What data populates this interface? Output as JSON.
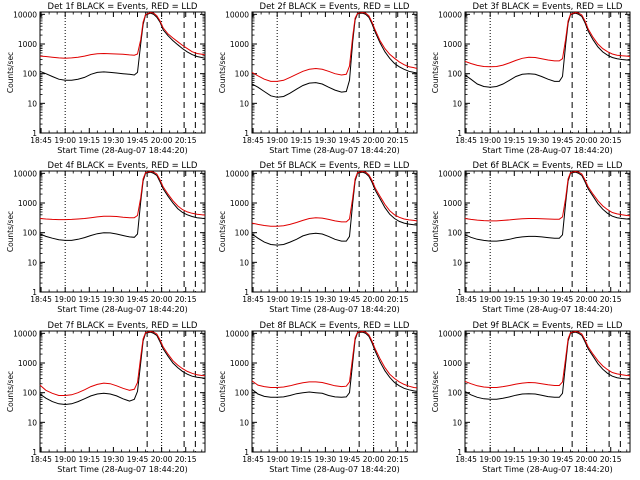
{
  "chart_data": {
    "type": "line",
    "layout": "3x3 grid",
    "ylabel": "Counts/sec",
    "xlabel": "Start Time (28-Aug-07 18:44:20)",
    "x_ticks": [
      "18:45",
      "19:00",
      "19:15",
      "19:30",
      "19:45",
      "20:00",
      "20:15"
    ],
    "x_tick_values": [
      45,
      60,
      75,
      90,
      105,
      120,
      135
    ],
    "xlim": [
      44.33,
      147
    ],
    "y_scale": "log",
    "ylim": [
      1,
      12000
    ],
    "y_ticks": [
      "1",
      "10",
      "100",
      "1000",
      "10000"
    ],
    "y_tick_values": [
      1,
      10,
      100,
      1000,
      10000
    ],
    "dotted_vlines": [
      60,
      120
    ],
    "dashed_vlines": [
      111,
      134,
      141
    ],
    "curve_x": [
      44.3,
      48,
      52,
      56,
      60,
      64,
      68,
      72,
      76,
      80,
      84,
      88,
      92,
      96,
      100,
      103,
      105,
      107,
      108.5,
      110,
      113,
      115,
      117,
      119,
      121,
      124,
      127,
      130,
      133,
      136,
      139,
      142,
      145,
      147
    ],
    "panels": [
      {
        "title": "Det 1f BLACK = Events, RED = LLD",
        "red": [
          390,
          380,
          360,
          340,
          330,
          340,
          360,
          390,
          440,
          470,
          480,
          470,
          460,
          450,
          430,
          420,
          460,
          1400,
          5500,
          9800,
          11500,
          11000,
          9000,
          6000,
          3500,
          2200,
          1600,
          1200,
          900,
          700,
          550,
          480,
          450,
          430
        ],
        "black": [
          120,
          100,
          80,
          65,
          60,
          60,
          65,
          75,
          95,
          110,
          115,
          110,
          105,
          100,
          95,
          90,
          110,
          1000,
          4500,
          9500,
          11000,
          10000,
          8000,
          5500,
          3000,
          1900,
          1300,
          950,
          700,
          540,
          440,
          380,
          350,
          330
        ]
      },
      {
        "title": "Det 2f BLACK = Events, RED = LLD",
        "red": [
          110,
          85,
          65,
          55,
          55,
          60,
          75,
          95,
          120,
          140,
          150,
          140,
          120,
          100,
          90,
          95,
          180,
          1800,
          7500,
          10800,
          11500,
          11000,
          9000,
          5500,
          3000,
          1300,
          700,
          450,
          330,
          250,
          200,
          170,
          160,
          150
        ],
        "black": [
          45,
          35,
          25,
          18,
          16,
          17,
          22,
          30,
          40,
          48,
          50,
          45,
          35,
          28,
          24,
          25,
          60,
          1200,
          6500,
          10500,
          11000,
          10000,
          8000,
          4800,
          2500,
          1100,
          550,
          330,
          220,
          170,
          140,
          120,
          110,
          105
        ]
      },
      {
        "title": "Det 3f BLACK = Events, RED = LLD",
        "red": [
          260,
          220,
          190,
          175,
          170,
          175,
          195,
          230,
          280,
          330,
          360,
          350,
          320,
          290,
          270,
          270,
          320,
          1500,
          6000,
          10000,
          11500,
          11000,
          9500,
          6000,
          3200,
          1700,
          1000,
          700,
          550,
          460,
          420,
          400,
          390,
          380
        ],
        "black": [
          90,
          65,
          45,
          37,
          35,
          37,
          45,
          60,
          80,
          95,
          100,
          95,
          80,
          65,
          55,
          55,
          80,
          1000,
          5000,
          9800,
          11000,
          10000,
          8500,
          5200,
          2700,
          1400,
          800,
          540,
          420,
          350,
          320,
          300,
          290,
          285
        ]
      },
      {
        "title": "Det 4f BLACK = Events, RED = LLD",
        "red": [
          300,
          290,
          280,
          275,
          275,
          280,
          290,
          300,
          320,
          340,
          360,
          360,
          350,
          330,
          320,
          320,
          380,
          1500,
          6500,
          10500,
          11500,
          11000,
          9500,
          6000,
          3500,
          2000,
          1200,
          800,
          600,
          500,
          450,
          420,
          400,
          390
        ],
        "black": [
          90,
          75,
          65,
          58,
          55,
          55,
          60,
          68,
          80,
          92,
          100,
          98,
          90,
          80,
          72,
          70,
          90,
          1100,
          5500,
          10000,
          11000,
          10000,
          8500,
          5200,
          3000,
          1700,
          1000,
          650,
          480,
          400,
          350,
          320,
          305,
          300
        ]
      },
      {
        "title": "Det 5f BLACK = Events, RED = LLD",
        "red": [
          210,
          190,
          175,
          165,
          165,
          170,
          190,
          220,
          260,
          300,
          320,
          310,
          280,
          250,
          230,
          230,
          290,
          1500,
          6500,
          10500,
          11500,
          11000,
          9000,
          5800,
          3200,
          1700,
          900,
          550,
          400,
          330,
          290,
          270,
          260,
          250
        ],
        "black": [
          90,
          65,
          48,
          40,
          38,
          40,
          48,
          60,
          78,
          90,
          95,
          90,
          75,
          60,
          52,
          52,
          75,
          1000,
          5500,
          10000,
          11000,
          10000,
          8000,
          5000,
          2700,
          1400,
          700,
          420,
          300,
          240,
          210,
          195,
          185,
          180
        ]
      },
      {
        "title": "Det 6f BLACK = Events, RED = LLD",
        "red": [
          300,
          280,
          265,
          255,
          250,
          250,
          260,
          270,
          285,
          295,
          300,
          300,
          295,
          290,
          285,
          285,
          340,
          1500,
          6500,
          10500,
          11500,
          11000,
          9500,
          6000,
          3500,
          2000,
          1200,
          800,
          600,
          480,
          430,
          400,
          380,
          370
        ],
        "black": [
          85,
          70,
          60,
          55,
          52,
          52,
          55,
          60,
          67,
          72,
          75,
          75,
          72,
          68,
          65,
          65,
          85,
          1050,
          5500,
          10000,
          11000,
          10000,
          8500,
          5200,
          3000,
          1700,
          950,
          620,
          450,
          360,
          320,
          300,
          290,
          285
        ]
      },
      {
        "title": "Det 7f BLACK = Events, RED = LLD",
        "red": [
          180,
          120,
          95,
          80,
          80,
          85,
          100,
          125,
          160,
          190,
          210,
          200,
          170,
          140,
          120,
          130,
          220,
          1600,
          6500,
          10500,
          11500,
          11000,
          9500,
          6000,
          3500,
          2000,
          1200,
          850,
          650,
          520,
          450,
          400,
          380,
          370
        ],
        "black": [
          90,
          65,
          50,
          42,
          40,
          42,
          50,
          62,
          78,
          90,
          95,
          90,
          78,
          62,
          52,
          60,
          110,
          1000,
          5500,
          10000,
          11000,
          10000,
          8500,
          5200,
          3000,
          1700,
          1000,
          700,
          520,
          420,
          360,
          330,
          315,
          305
        ]
      },
      {
        "title": "Det 8f BLACK = Events, RED = LLD",
        "red": [
          250,
          180,
          160,
          150,
          150,
          155,
          170,
          195,
          215,
          230,
          230,
          220,
          195,
          170,
          160,
          165,
          230,
          1600,
          7000,
          10800,
          11500,
          11000,
          9000,
          5500,
          3000,
          1400,
          700,
          420,
          300,
          230,
          190,
          165,
          150,
          145
        ],
        "black": [
          130,
          90,
          75,
          70,
          70,
          72,
          80,
          92,
          100,
          105,
          100,
          95,
          80,
          72,
          70,
          72,
          100,
          1050,
          6000,
          10500,
          11000,
          10000,
          8000,
          4800,
          2500,
          1100,
          550,
          330,
          220,
          170,
          140,
          125,
          115,
          110
        ]
      },
      {
        "title": "Det 9f BLACK = Events, RED = LLD",
        "red": [
          240,
          200,
          170,
          155,
          150,
          150,
          160,
          175,
          195,
          210,
          220,
          215,
          200,
          185,
          175,
          175,
          230,
          1500,
          6500,
          10500,
          11500,
          11000,
          9500,
          6000,
          3500,
          2000,
          1200,
          800,
          600,
          480,
          430,
          400,
          380,
          370
        ],
        "black": [
          110,
          85,
          70,
          62,
          60,
          60,
          65,
          72,
          82,
          90,
          92,
          90,
          82,
          74,
          70,
          70,
          95,
          1000,
          5500,
          10000,
          11000,
          10000,
          8500,
          5200,
          3000,
          1700,
          950,
          620,
          450,
          360,
          320,
          300,
          290,
          285
        ]
      }
    ],
    "series_colors": {
      "red": "#e00000",
      "black": "#000000"
    }
  }
}
